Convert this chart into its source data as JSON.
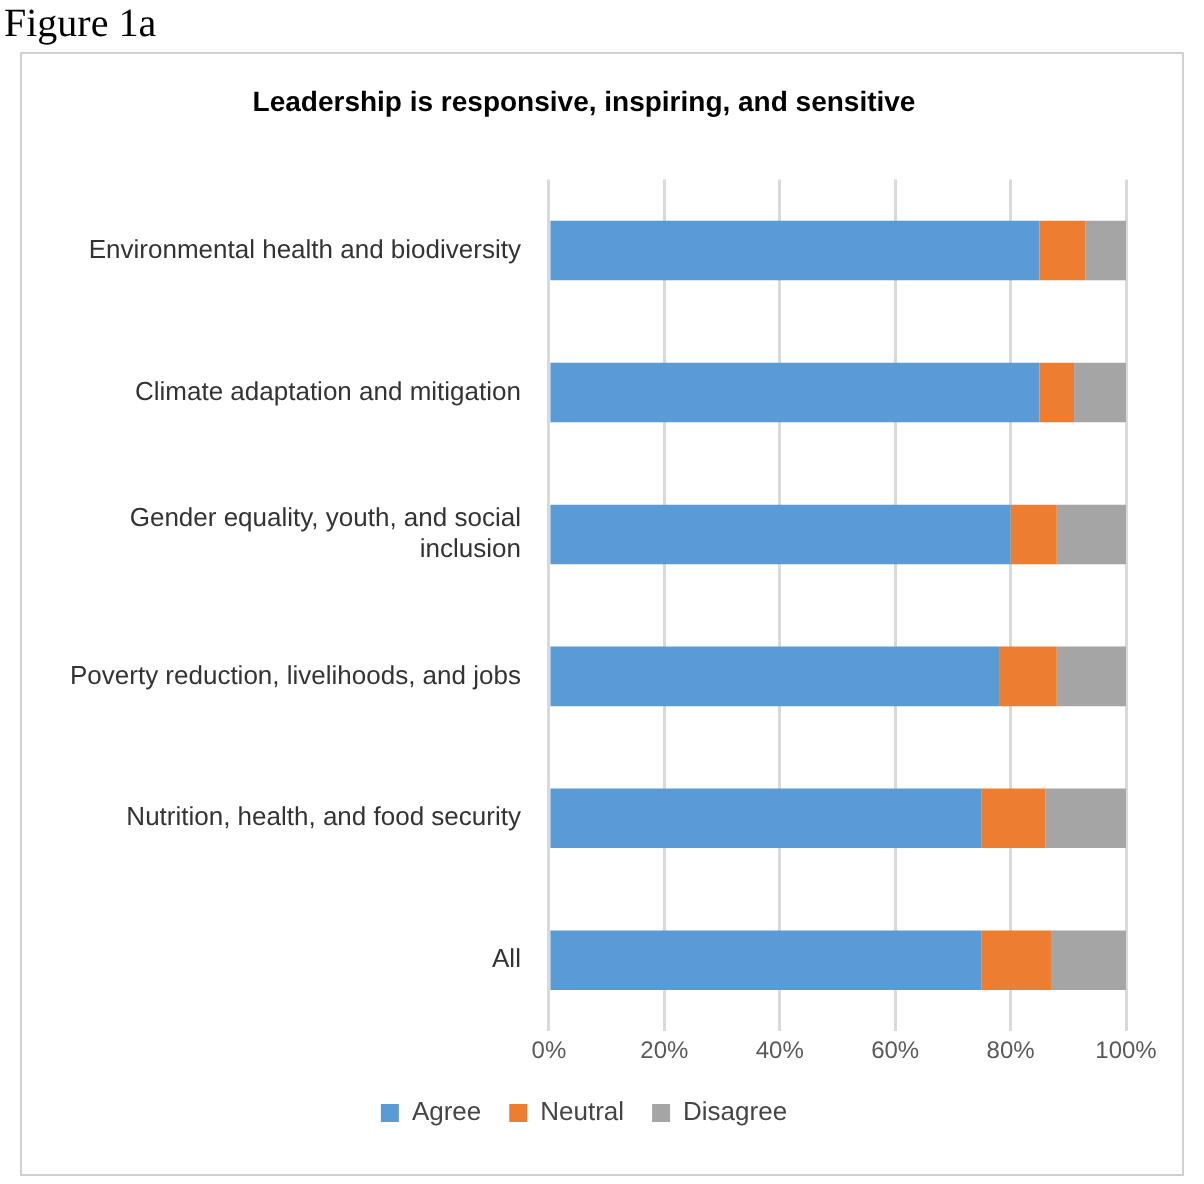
{
  "chart_data": {
    "type": "bar",
    "orientation": "horizontal",
    "stacked": true,
    "title": "Leadership is responsive, inspiring, and sensitive",
    "annotations": [
      "Figure 1a"
    ],
    "categories": [
      "Environmental health and biodiversity",
      "Climate adaptation and mitigation",
      "Gender equality, youth, and social inclusion",
      "Poverty reduction, livelihoods, and jobs",
      "Nutrition, health, and food security",
      "All"
    ],
    "series": [
      {
        "name": "Agree",
        "color": "#5b9bd5",
        "values": [
          85,
          85,
          80,
          78,
          75,
          75
        ]
      },
      {
        "name": "Neutral",
        "color": "#ed7d31",
        "values": [
          8,
          6,
          8,
          10,
          11,
          12
        ]
      },
      {
        "name": "Disagree",
        "color": "#a5a5a5",
        "values": [
          7,
          9,
          12,
          12,
          14,
          13
        ]
      }
    ],
    "xlim": [
      0,
      100
    ],
    "xticks": [
      {
        "value": 0,
        "label": "0%"
      },
      {
        "value": 20,
        "label": "20%"
      },
      {
        "value": 40,
        "label": "40%"
      },
      {
        "value": 60,
        "label": "60%"
      },
      {
        "value": 80,
        "label": "80%"
      },
      {
        "value": 100,
        "label": "100%"
      }
    ],
    "grid": "x",
    "legend": "bottom"
  }
}
